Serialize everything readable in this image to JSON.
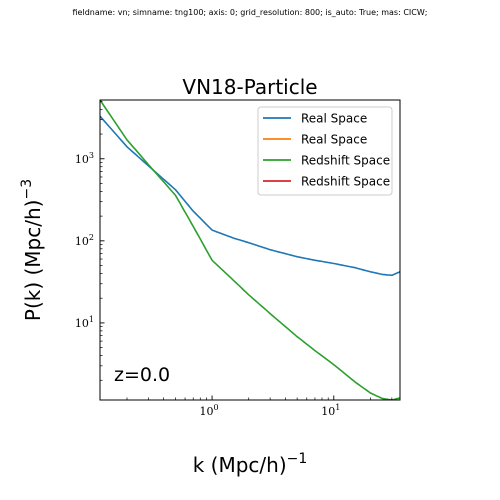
{
  "figure": {
    "suptitle": "fieldname: vn; simname: tng100; axis: 0; grid_resolution: 800; is_auto: True; mas: CICW;"
  },
  "chart_data": {
    "type": "line",
    "title": "VN18-Particle",
    "xlabel": "k (Mpc/h)",
    "xlabel_exp": "−1",
    "ylabel": "P(k) (Mpc/h)",
    "ylabel_exp": "−3",
    "xscale": "log",
    "yscale": "log",
    "xlim": [
      0.12,
      35
    ],
    "ylim": [
      1.15,
      5200
    ],
    "x_ticks": [
      {
        "value": 1,
        "base": "10",
        "exp": "0"
      },
      {
        "value": 10,
        "base": "10",
        "exp": "1"
      }
    ],
    "y_ticks": [
      {
        "value": 10,
        "base": "10",
        "exp": "1"
      },
      {
        "value": 100,
        "base": "10",
        "exp": "2"
      },
      {
        "value": 1000,
        "base": "10",
        "exp": "3"
      }
    ],
    "grid": false,
    "legend_position": "top-right",
    "annotation": "z=0.0",
    "series": [
      {
        "name": "Real Space",
        "color": "#1f77b4",
        "x": [
          0.12,
          0.2,
          0.3,
          0.5,
          0.7,
          1.0,
          1.5,
          2.0,
          3.0,
          5.0,
          7.0,
          10.0,
          15.0,
          20.0,
          25.0,
          30.0,
          35.0
        ],
        "y": [
          3300,
          1400,
          820,
          420,
          230,
          135,
          108,
          95,
          78,
          64,
          58,
          53,
          47,
          42,
          39,
          38,
          42
        ]
      },
      {
        "name": "Real Space",
        "color": "#ff7f0e",
        "x": [],
        "y": []
      },
      {
        "name": "Redshift Space",
        "color": "#2ca02c",
        "x": [
          0.12,
          0.2,
          0.3,
          0.5,
          0.7,
          1.0,
          1.5,
          2.0,
          3.0,
          5.0,
          7.0,
          10.0,
          15.0,
          20.0,
          25.0,
          30.0,
          35.0
        ],
        "y": [
          5200,
          1700,
          850,
          360,
          150,
          58,
          33,
          22,
          13,
          6.8,
          4.6,
          3.1,
          1.9,
          1.4,
          1.2,
          1.15,
          1.22
        ]
      },
      {
        "name": "Redshift Space",
        "color": "#d62728",
        "x": [],
        "y": []
      }
    ]
  }
}
